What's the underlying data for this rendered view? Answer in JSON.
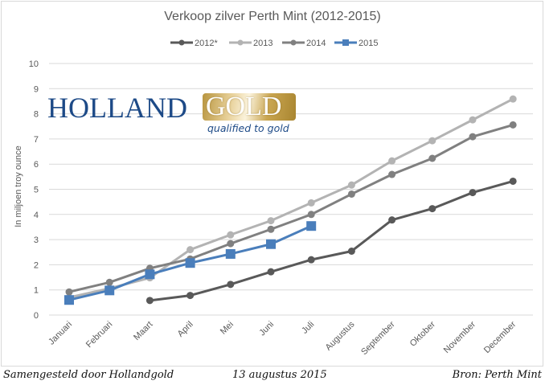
{
  "chart_data": {
    "type": "line",
    "title": "Verkoop zilver Perth Mint (2012-2015)",
    "xlabel": "",
    "ylabel": "In miljoen troy ounce",
    "ylim": [
      0,
      10
    ],
    "yticks": [
      "0",
      "1",
      "2",
      "3",
      "4",
      "5",
      "6",
      "7",
      "8",
      "9",
      "10"
    ],
    "grid": true,
    "legend_position": "top-center",
    "categories": [
      "Januari",
      "Februari",
      "Maart",
      "April",
      "Mei",
      "Juni",
      "Juli",
      "Augustus",
      "September",
      "Oktober",
      "November",
      "December"
    ],
    "series": [
      {
        "name": "2012*",
        "color": "#595959",
        "marker": "circle",
        "values": [
          null,
          null,
          0.58,
          0.78,
          1.22,
          1.72,
          2.2,
          2.54,
          3.78,
          4.23,
          4.87,
          5.32
        ]
      },
      {
        "name": "2013",
        "color": "#b3b3b3",
        "marker": "circle",
        "values": [
          0.7,
          1.06,
          1.48,
          2.6,
          3.19,
          3.75,
          4.46,
          5.17,
          6.13,
          6.93,
          7.76,
          8.59
        ]
      },
      {
        "name": "2014",
        "color": "#808080",
        "marker": "circle",
        "values": [
          0.92,
          1.3,
          1.86,
          2.23,
          2.84,
          3.41,
          4.0,
          4.81,
          5.59,
          6.23,
          7.09,
          7.56
        ]
      },
      {
        "name": "2015",
        "color": "#4a7ebb",
        "marker": "square",
        "values": [
          0.6,
          0.98,
          1.62,
          2.07,
          2.43,
          2.82,
          3.54,
          null,
          null,
          null,
          null,
          null
        ]
      }
    ]
  },
  "logo": {
    "word1": "HOLLAND",
    "word2": "GOLD",
    "tagline": "qualified to gold"
  },
  "footer": {
    "left": "Samengesteld door Hollandgold",
    "center": "13 augustus 2015",
    "right": "Bron: Perth Mint"
  }
}
